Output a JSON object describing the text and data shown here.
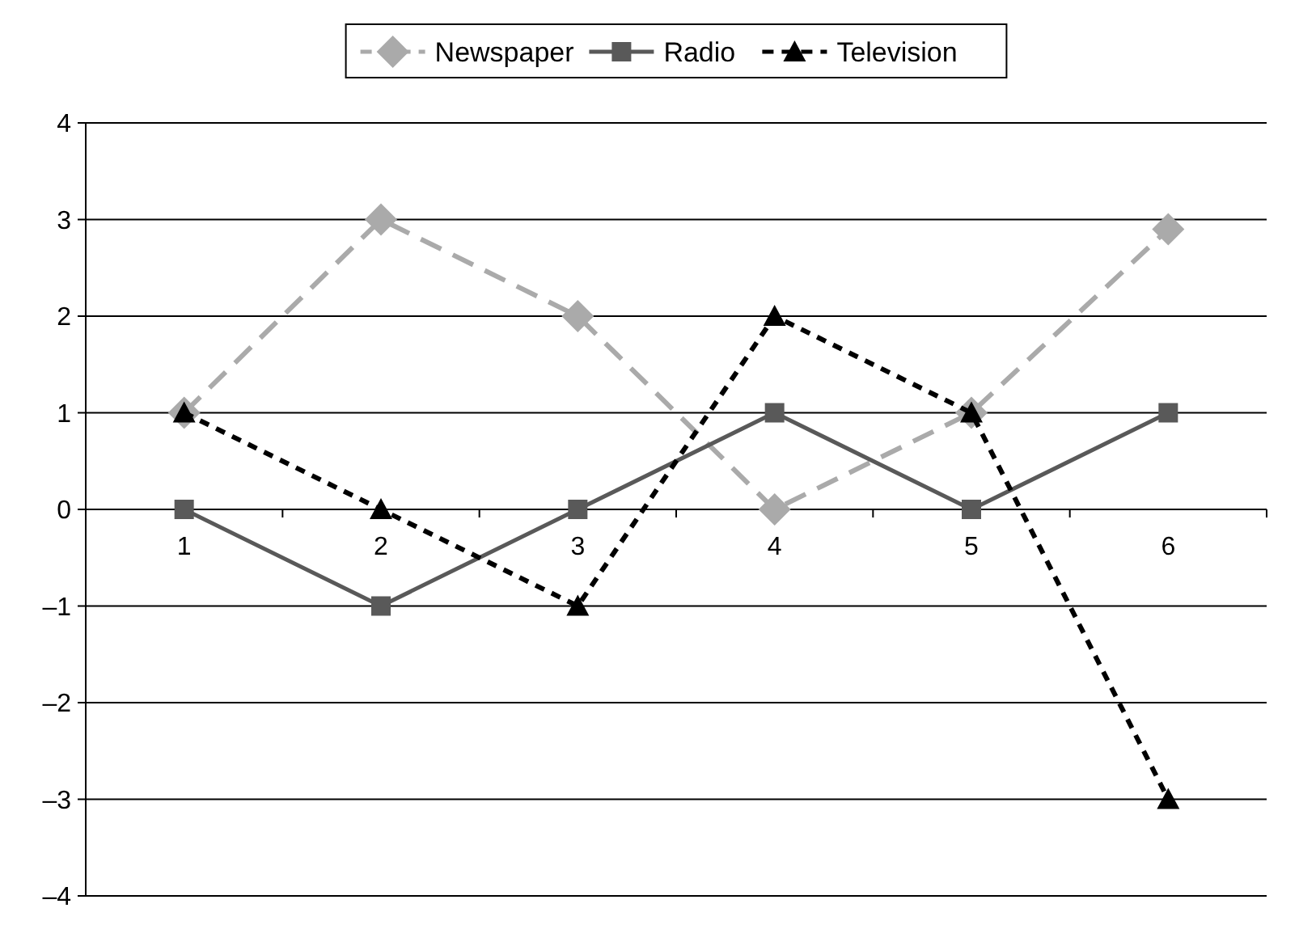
{
  "chart_data": {
    "type": "line",
    "categories": [
      "1",
      "2",
      "3",
      "4",
      "5",
      "6"
    ],
    "series": [
      {
        "name": "Newspaper",
        "color": "#aaaaaa",
        "marker": "diamond",
        "line_style": "dashed",
        "values": [
          1,
          3,
          2,
          0,
          1,
          2.9
        ]
      },
      {
        "name": "Radio",
        "color": "#595959",
        "marker": "square",
        "line_style": "solid",
        "values": [
          0,
          -1,
          0,
          1,
          0,
          1
        ]
      },
      {
        "name": "Television",
        "color": "#000000",
        "marker": "triangle",
        "line_style": "dotted",
        "values": [
          1,
          0,
          -1,
          2,
          1,
          -3
        ]
      }
    ],
    "ylim": [
      -4,
      4
    ],
    "yticks": [
      {
        "value": -4,
        "label": "–4"
      },
      {
        "value": -3,
        "label": "–3"
      },
      {
        "value": -2,
        "label": "–2"
      },
      {
        "value": -1,
        "label": "–1"
      },
      0,
      1,
      2,
      3,
      4
    ],
    "grid": "y",
    "legend": "top"
  }
}
